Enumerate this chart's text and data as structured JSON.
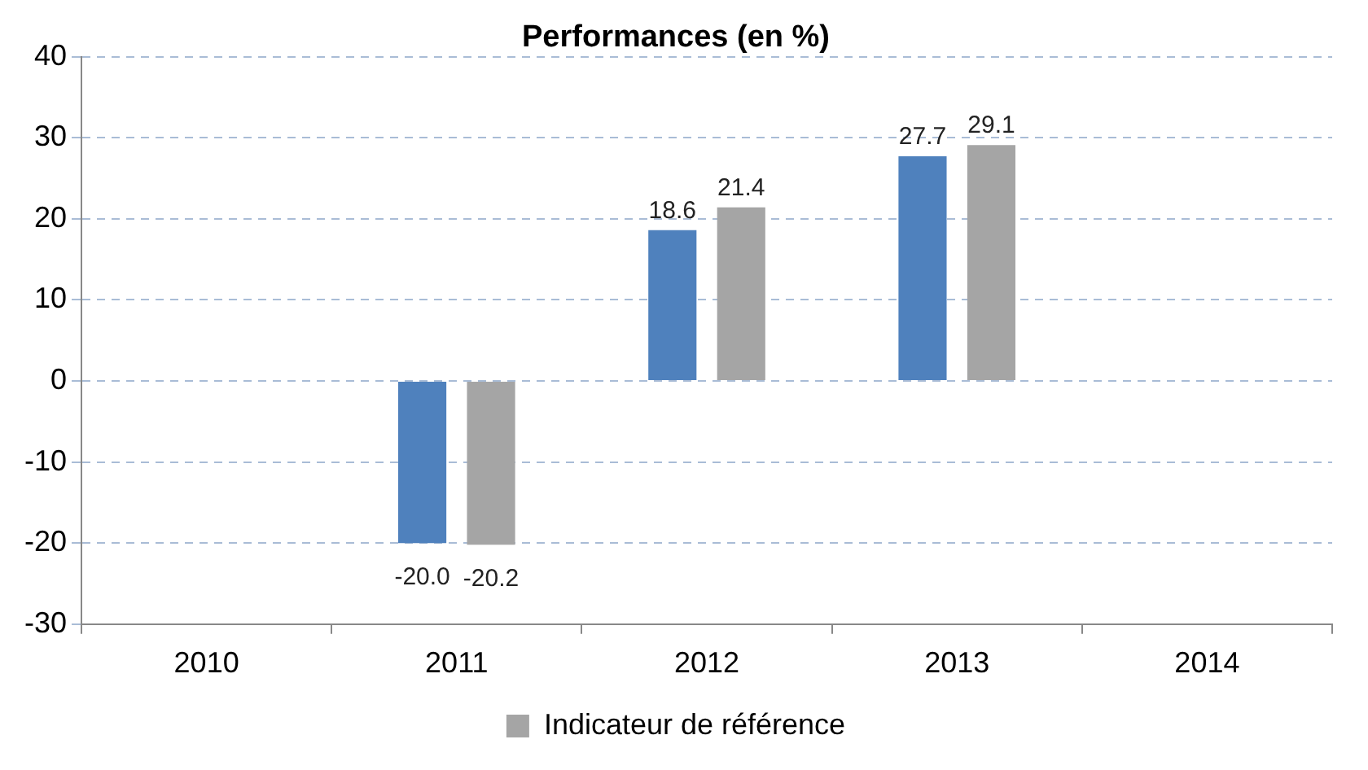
{
  "chart_data": {
    "type": "bar",
    "title": "Performances (en %)",
    "categories": [
      "2010",
      "2011",
      "2012",
      "2013",
      "2014"
    ],
    "series": [
      {
        "color": "#4f81bd",
        "values": [
          null,
          -20.0,
          18.6,
          27.7,
          null
        ],
        "value_labels": [
          null,
          "-20.0",
          "18.6",
          "27.7",
          null
        ]
      },
      {
        "name": "Indicateur de référence",
        "color": "#a5a5a5",
        "values": [
          null,
          -20.2,
          21.4,
          29.1,
          null
        ],
        "value_labels": [
          null,
          "-20.2",
          "21.4",
          "29.1",
          null
        ]
      }
    ],
    "ylim": [
      -30,
      40
    ],
    "yticks": [
      -30,
      -20,
      -10,
      0,
      10,
      20,
      30,
      40
    ],
    "grid": "y",
    "legend": "bottom"
  }
}
